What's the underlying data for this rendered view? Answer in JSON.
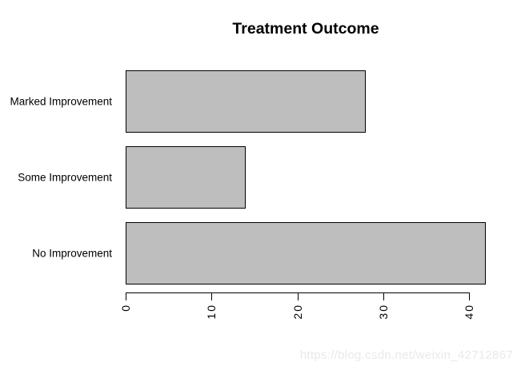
{
  "title": "Treatment Outcome",
  "watermark": "https://blog.csdn.net/weixin_42712867",
  "chart_data": {
    "type": "bar",
    "orientation": "horizontal",
    "title": "Treatment Outcome",
    "categories": [
      "Marked Improvement",
      "Some Improvement",
      "No Improvement"
    ],
    "values": [
      28,
      14,
      42
    ],
    "xlabel": "",
    "ylabel": "",
    "xticks": [
      0,
      10,
      20,
      30,
      40
    ],
    "xlim": [
      0,
      43
    ],
    "grid": false,
    "legend": "none",
    "bar_fill_color": "#BEBEBE",
    "bar_border_color": "#000000",
    "tick_label_rotation_deg": 90
  }
}
